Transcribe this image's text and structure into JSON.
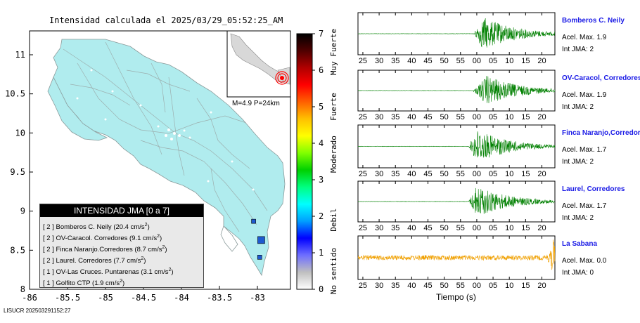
{
  "map": {
    "title": "Intensidad calculada el 2025/03/29_05:52:25_AM",
    "footer": "LISUCR 202503291152:27",
    "epicenter_info": "M=4.9 P=24km",
    "x_ticks": [
      "-86",
      "-85.5",
      "-85",
      "-84.5",
      "-84",
      "-83.5",
      "-83"
    ],
    "y_ticks": [
      "11",
      "10.5",
      "10",
      "9.5",
      "9",
      "8.5",
      "8"
    ],
    "stations": [
      {
        "lon": -82.95,
        "lat": 8.63,
        "color": "#1e5ad0"
      },
      {
        "lon": -82.97,
        "lat": 8.41,
        "color": "#1e5ad0"
      },
      {
        "lon": -83.05,
        "lat": 8.87,
        "color": "#1e5ad0"
      }
    ]
  },
  "legend": {
    "title": "INTENSIDAD JMA [0 a 7]",
    "entries": [
      {
        "intensity": "[ 2 ]",
        "name": "Bomberos C. Neily (20.4 cm/s",
        "exp": "2",
        "close": ")"
      },
      {
        "intensity": "[ 2 ]",
        "name": "OV-Caracol. Corredores (9.1 cm/s",
        "exp": "2",
        "close": ")"
      },
      {
        "intensity": "[ 2 ]",
        "name": "Finca Naranjo.Corredores (8.7 cm/s",
        "exp": "2",
        "close": ")"
      },
      {
        "intensity": "[ 2 ]",
        "name": "Laurel. Corredores (7.7 cm/s",
        "exp": "2",
        "close": ")"
      },
      {
        "intensity": "[ 1 ]",
        "name": "OV-Las Cruces. Puntarenas (3.1 cm/s",
        "exp": "2",
        "close": ")"
      },
      {
        "intensity": "[ 1 ]",
        "name": "Golfito CTP (1.9 cm/s",
        "exp": "2",
        "close": ")"
      }
    ]
  },
  "colorbar": {
    "ticks": [
      "0",
      "1",
      "2",
      "3",
      "4",
      "5",
      "6",
      "7"
    ],
    "labels": [
      "No sentido",
      "Debil",
      "Moderado",
      "Fuerte",
      "Muy Fuerte"
    ],
    "colors": [
      "#ffffff",
      "#bfbfbf",
      "#6f6fff",
      "#0000ff",
      "#00a0ff",
      "#00ffff",
      "#00ff80",
      "#00d000",
      "#80ff00",
      "#ffff00",
      "#ffc000",
      "#ff6000",
      "#ff0000",
      "#b00000",
      "#500000",
      "#000000"
    ]
  },
  "chart_data": {
    "type": "line",
    "xlabel": "Tiempo (s)",
    "x_tick_labels": [
      "25",
      "30",
      "35",
      "40",
      "45",
      "50",
      "55",
      "00",
      "05",
      "10",
      "15",
      "20"
    ],
    "series": [
      {
        "name": "Bomberos C. Neily",
        "accel_label": "Acel. Max. 1.9",
        "int_label": "Int JMA: 2",
        "color": "#008000",
        "onset": 59,
        "peak": 62,
        "amp": 0.85,
        "type": "quake"
      },
      {
        "name": "OV-Caracol, Corredores",
        "accel_label": "Acel. Max. 1.9",
        "int_label": "Int JMA: 2",
        "color": "#008000",
        "onset": 59,
        "peak": 63,
        "amp": 0.8,
        "type": "quake"
      },
      {
        "name": "Finca Naranjo,Corredores",
        "accel_label": "Acel. Max. 1.7",
        "int_label": "Int JMA: 2",
        "color": "#008000",
        "onset": 57.5,
        "peak": 60,
        "amp": 0.85,
        "type": "quake"
      },
      {
        "name": "Laurel, Corredores",
        "accel_label": "Acel. Max. 1.7",
        "int_label": "Int JMA: 2",
        "color": "#008000",
        "onset": 57.5,
        "peak": 60,
        "amp": 0.85,
        "type": "quake"
      },
      {
        "name": "La Sabana",
        "accel_label": "Acel. Max. 0.0",
        "int_label": "Int JMA: 0",
        "color": "#f0a000",
        "onset": 83,
        "peak": 83.5,
        "amp": 0.95,
        "type": "noise"
      }
    ]
  }
}
